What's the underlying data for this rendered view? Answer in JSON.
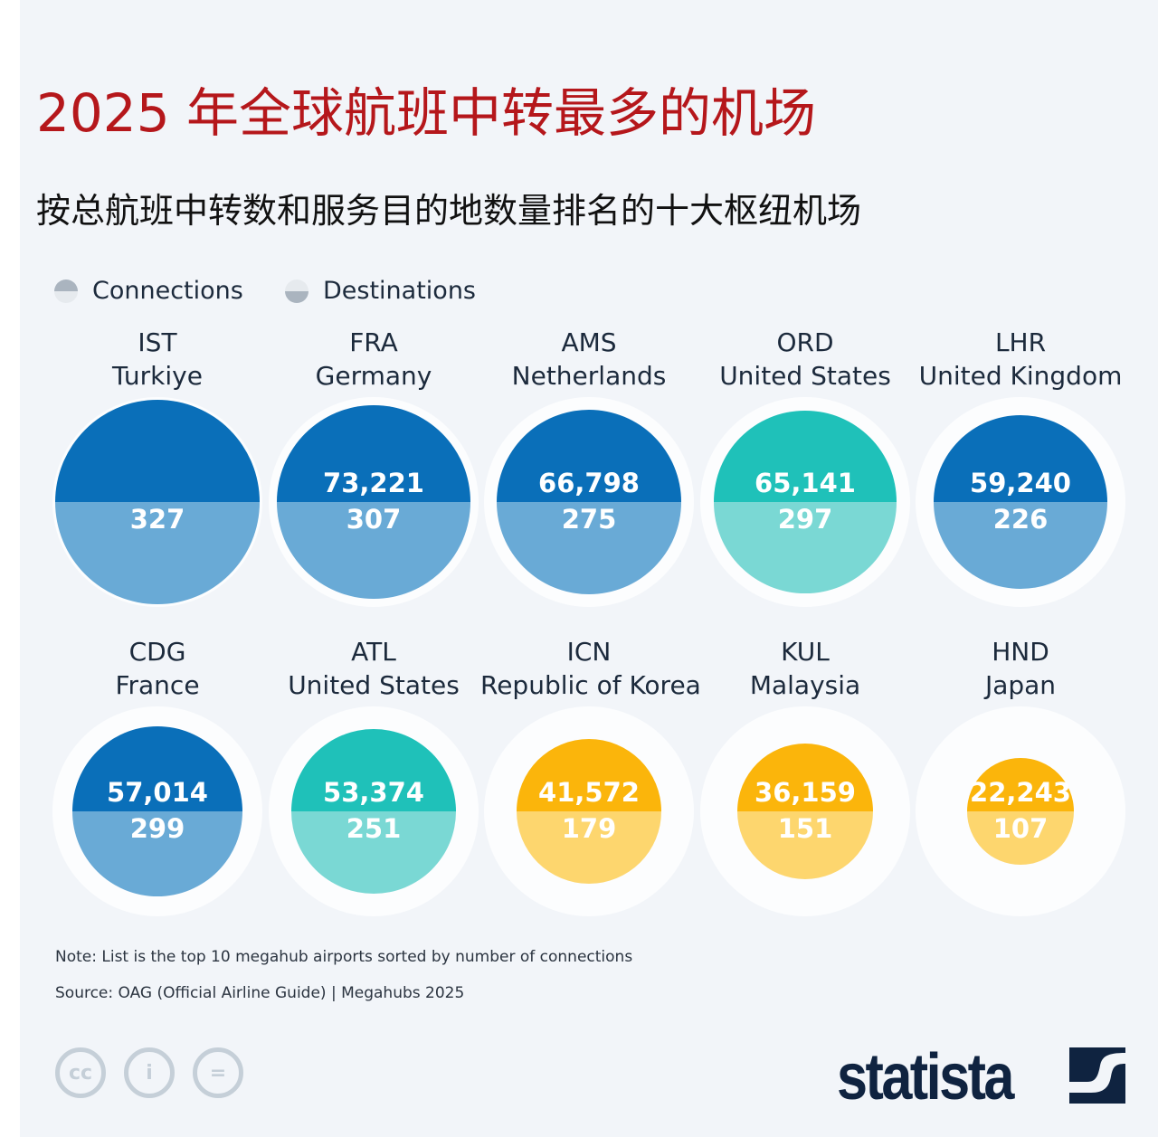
{
  "title": "2025 年全球航班中转最多的机场",
  "subtitle": "按总航班中转数和服务目的地数量排名的十大枢纽机场",
  "legend": [
    {
      "label": "Connections"
    },
    {
      "label": "Destinations"
    }
  ],
  "chart_data": {
    "type": "bubble",
    "title": "2025 年全球航班中转最多的机场",
    "subtitle": "按总航班中转数和服务目的地数量排名的十大枢纽机场",
    "series_names": [
      "Connections",
      "Destinations"
    ],
    "items": [
      {
        "code": "IST",
        "country": "Turkiye",
        "connections": null,
        "connections_text": "",
        "destinations": 327,
        "destinations_text": "327",
        "color": "#0a6fb9",
        "color_light": "#69aad6"
      },
      {
        "code": "FRA",
        "country": "Germany",
        "connections": 73221,
        "connections_text": "73,221",
        "destinations": 307,
        "destinations_text": "307",
        "color": "#0a6fb9",
        "color_light": "#69aad6"
      },
      {
        "code": "AMS",
        "country": "Netherlands",
        "connections": 66798,
        "connections_text": "66,798",
        "destinations": 275,
        "destinations_text": "275",
        "color": "#0a6fb9",
        "color_light": "#69aad6"
      },
      {
        "code": "ORD",
        "country": "United States",
        "connections": 65141,
        "connections_text": "65,141",
        "destinations": 297,
        "destinations_text": "297",
        "color": "#1fc1b9",
        "color_light": "#7ad8d4"
      },
      {
        "code": "LHR",
        "country": "United Kingdom",
        "connections": 59240,
        "connections_text": "59,240",
        "destinations": 226,
        "destinations_text": "226",
        "color": "#0a6fb9",
        "color_light": "#69aad6"
      },
      {
        "code": "CDG",
        "country": "France",
        "connections": 57014,
        "connections_text": "57,014",
        "destinations": 299,
        "destinations_text": "299",
        "color": "#0a6fb9",
        "color_light": "#69aad6"
      },
      {
        "code": "ATL",
        "country": "United States",
        "connections": 53374,
        "connections_text": "53,374",
        "destinations": 251,
        "destinations_text": "251",
        "color": "#1fc1b9",
        "color_light": "#7ad8d4"
      },
      {
        "code": "ICN",
        "country": "Republic of Korea",
        "connections": 41572,
        "connections_text": "41,572",
        "destinations": 179,
        "destinations_text": "179",
        "color": "#fbb50b",
        "color_light": "#fdd66e"
      },
      {
        "code": "KUL",
        "country": "Malaysia",
        "connections": 36159,
        "connections_text": "36,159",
        "destinations": 151,
        "destinations_text": "151",
        "color": "#fbb50b",
        "color_light": "#fdd66e"
      },
      {
        "code": "HND",
        "country": "Japan",
        "connections": 22243,
        "connections_text": "22,243",
        "destinations": 107,
        "destinations_text": "107",
        "color": "#fbb50b",
        "color_light": "#fdd66e"
      }
    ]
  },
  "note": "Note: List is the top 10 megahub airports sorted by number of connections",
  "source": "Source: OAG (Official Airline Guide) | Megahubs 2025",
  "license_icons": [
    "cc-icon",
    "attribution-icon",
    "no-derivatives-icon"
  ],
  "brand": "statista"
}
